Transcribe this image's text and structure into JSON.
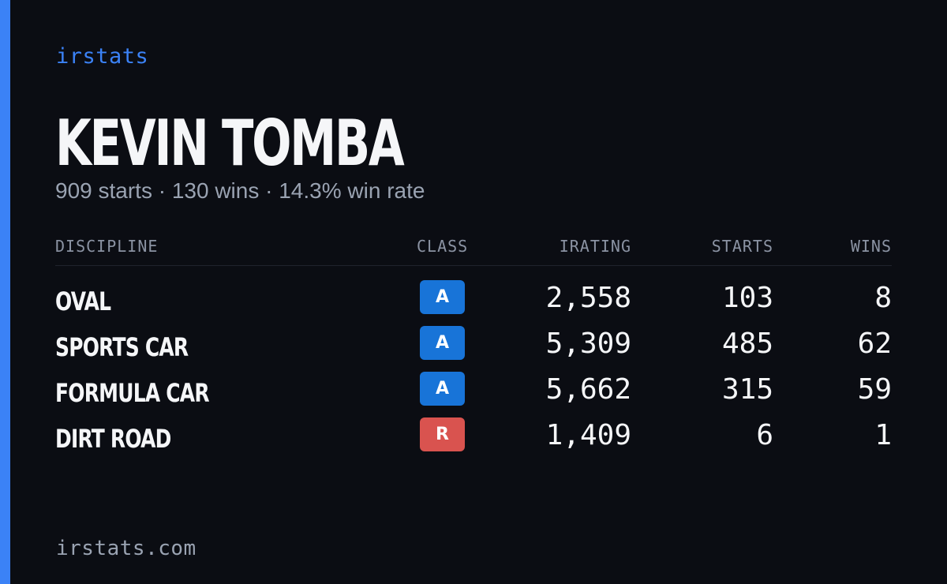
{
  "brand": "irstats",
  "driver": {
    "name": "KEVIN TOMBA",
    "summary": "909 starts · 130 wins · 14.3% win rate"
  },
  "table": {
    "headers": {
      "discipline": "DISCIPLINE",
      "class": "CLASS",
      "irating": "IRATING",
      "starts": "STARTS",
      "wins": "WINS"
    },
    "rows": [
      {
        "discipline": "OVAL",
        "class": "A",
        "class_color": "#1874d8",
        "irating": "2,558",
        "starts": "103",
        "wins": "8"
      },
      {
        "discipline": "SPORTS CAR",
        "class": "A",
        "class_color": "#1874d8",
        "irating": "5,309",
        "starts": "485",
        "wins": "62"
      },
      {
        "discipline": "FORMULA CAR",
        "class": "A",
        "class_color": "#1874d8",
        "irating": "5,662",
        "starts": "315",
        "wins": "59"
      },
      {
        "discipline": "DIRT ROAD",
        "class": "R",
        "class_color": "#d9534f",
        "irating": "1,409",
        "starts": "6",
        "wins": "1"
      }
    ]
  },
  "footer": {
    "url": "irstats.com"
  },
  "colors": {
    "background": "#0b0d13",
    "accent": "#3b82f6",
    "class_a": "#1874d8",
    "class_r": "#d9534f"
  }
}
